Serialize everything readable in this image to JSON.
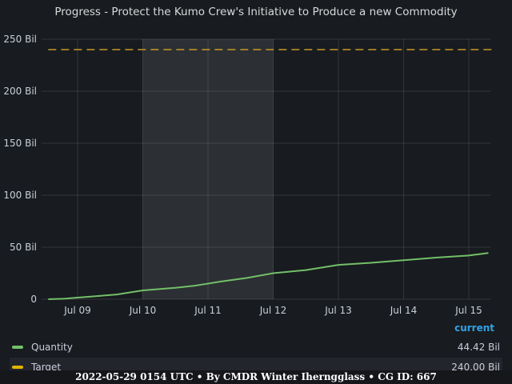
{
  "title": "Progress - Protect the Kumo Crew's Initiative to Produce a new Commodity",
  "legend": {
    "header": "current",
    "items": [
      {
        "name": "Quantity",
        "value": "44.42 Bil",
        "color": "#73bf69"
      },
      {
        "name": "Target",
        "value": "240.00 Bil",
        "color": "#fade2a"
      }
    ]
  },
  "footer": "2022-05-29 0154 UTC • By CMDR Winter Iherngglass • CG ID: 667",
  "chart_data": {
    "type": "line",
    "title": "Progress - Protect the Kumo Crew's Initiative to Produce a new Commodity",
    "ylim": [
      0,
      250
    ],
    "y_unit": "Bil",
    "y_ticks": [
      "0",
      "50 Bil",
      "100 Bil",
      "150 Bil",
      "200 Bil",
      "250 Bil"
    ],
    "x_ticks": [
      "Jul 09",
      "Jul 10",
      "Jul 11",
      "Jul 12",
      "Jul 13",
      "Jul 14",
      "Jul 15"
    ],
    "x_range_days": [
      -0.45,
      6.4
    ],
    "highlight_days": [
      0,
      2
    ],
    "grid": true,
    "legend_position": "bottom",
    "series": [
      {
        "name": "Quantity",
        "color": "#73bf69",
        "x": [
          -0.45,
          -0.2,
          0,
          0.3,
          0.6,
          1.0,
          1.5,
          1.8,
          2.2,
          2.6,
          3.0,
          3.5,
          4.0,
          4.5,
          5.0,
          5.5,
          6.0,
          6.3
        ],
        "y": [
          0,
          0.5,
          1.5,
          3,
          4.5,
          8.5,
          11,
          13,
          17,
          20.5,
          25,
          28,
          33,
          35,
          37.5,
          40,
          42,
          44.42
        ]
      },
      {
        "name": "Target",
        "color": "#fade2a",
        "style": "dashed",
        "x": [
          -0.45,
          6.4
        ],
        "y": [
          240,
          240
        ]
      }
    ]
  }
}
